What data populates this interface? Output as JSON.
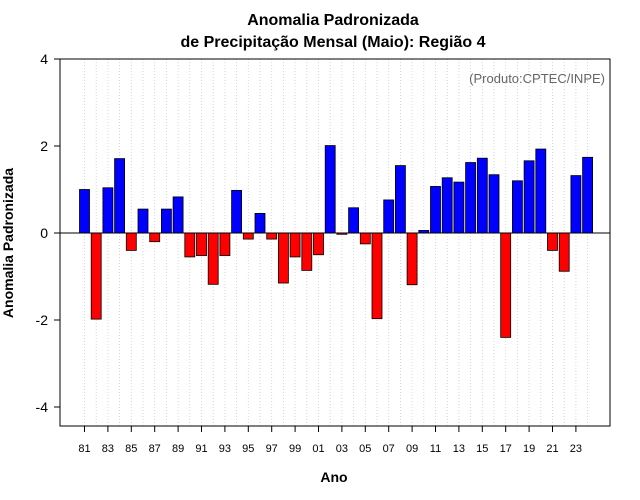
{
  "chart_data": {
    "type": "bar",
    "title": "Anomalia Padronizada",
    "subtitle": "de Precipitação Mensal (Maio): Região 4",
    "credit": "(Produto:CPTEC/INPE)",
    "xlabel": "Ano",
    "ylabel": "Anomalia Padronizada",
    "ylim": [
      -4.4,
      4
    ],
    "yticks": [
      4,
      2,
      0,
      -2,
      -4
    ],
    "ytick_labels": [
      "4",
      "2",
      "0",
      "-2",
      "-4"
    ],
    "xtick_labels": [
      "81",
      "83",
      "85",
      "87",
      "89",
      "91",
      "93",
      "95",
      "97",
      "99",
      "01",
      "03",
      "05",
      "07",
      "09",
      "11",
      "13",
      "15",
      "17",
      "19",
      "21",
      "23"
    ],
    "categories": [
      "1981",
      "1982",
      "1983",
      "1984",
      "1985",
      "1986",
      "1987",
      "1988",
      "1989",
      "1990",
      "1991",
      "1992",
      "1993",
      "1994",
      "1995",
      "1996",
      "1997",
      "1998",
      "1999",
      "2000",
      "2001",
      "2002",
      "2003",
      "2004",
      "2005",
      "2006",
      "2007",
      "2008",
      "2009",
      "2010",
      "2011",
      "2012",
      "2013",
      "2014",
      "2015",
      "2016",
      "2017",
      "2018",
      "2019",
      "2020",
      "2021",
      "2022",
      "2023",
      "2024"
    ],
    "values": [
      1.0,
      -1.98,
      1.04,
      1.71,
      -0.4,
      0.55,
      -0.2,
      0.55,
      0.83,
      -0.55,
      -0.52,
      -1.18,
      -0.52,
      0.98,
      -0.14,
      0.45,
      -0.14,
      -1.15,
      -0.55,
      -0.86,
      -0.5,
      2.01,
      -0.03,
      0.58,
      -0.25,
      -1.97,
      0.76,
      1.55,
      -1.19,
      0.06,
      1.07,
      1.27,
      1.17,
      1.62,
      1.72,
      1.34,
      -2.4,
      1.2,
      1.66,
      1.93,
      -0.4,
      -0.88,
      1.32,
      1.74
    ],
    "colors": {
      "positive": "#0000ff",
      "negative": "#ff0000",
      "grid": "#cccccc",
      "zero_line": "#000000"
    },
    "grid": true
  }
}
